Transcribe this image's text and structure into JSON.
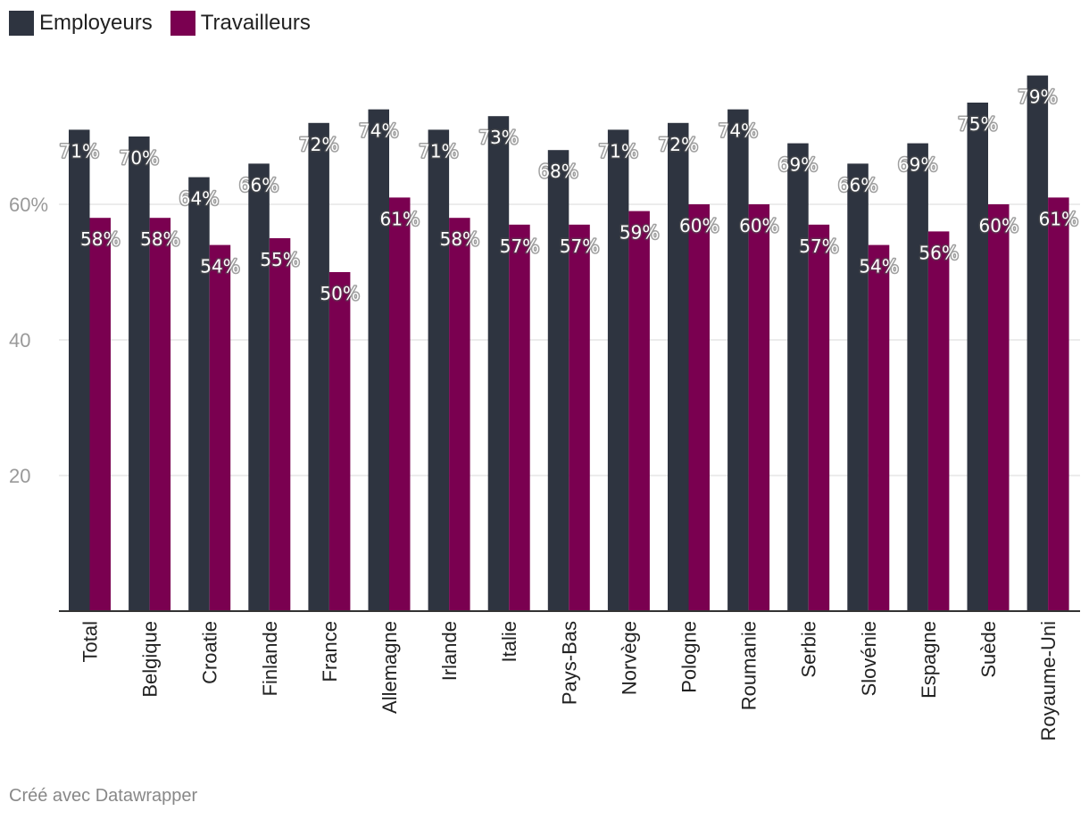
{
  "chart_data": {
    "type": "bar",
    "title": "",
    "xlabel": "",
    "ylabel": "",
    "ylim": [
      0,
      80
    ],
    "yticks": [
      {
        "value": 20,
        "label": "20"
      },
      {
        "value": 40,
        "label": "40"
      },
      {
        "value": 60,
        "label": "60%"
      }
    ],
    "grid": true,
    "legend_position": "top-left",
    "categories": [
      "Total",
      "Belgique",
      "Croatie",
      "Finlande",
      "France",
      "Allemagne",
      "Irlande",
      "Italie",
      "Pays-Bas",
      "Norvège",
      "Pologne",
      "Roumanie",
      "Serbie",
      "Slovénie",
      "Espagne",
      "Suède",
      "Royaume-Uni"
    ],
    "series": [
      {
        "name": "Employeurs",
        "color": "#2e3440",
        "values": [
          71,
          70,
          64,
          66,
          72,
          74,
          71,
          73,
          68,
          71,
          72,
          74,
          69,
          66,
          69,
          75,
          79
        ],
        "labels": [
          "71%",
          "70%",
          "64%",
          "66%",
          "72%",
          "74%",
          "71%",
          "73%",
          "68%",
          "71%",
          "72%",
          "74%",
          "69%",
          "66%",
          "69%",
          "75%",
          "79%"
        ]
      },
      {
        "name": "Travailleurs",
        "color": "#7a0050",
        "values": [
          58,
          58,
          54,
          55,
          50,
          61,
          58,
          57,
          57,
          59,
          60,
          60,
          57,
          54,
          56,
          60,
          61
        ],
        "labels": [
          "58%",
          "58%",
          "54%",
          "55%",
          "50%",
          "61%",
          "58%",
          "57%",
          "57%",
          "59%",
          "60%",
          "60%",
          "57%",
          "54%",
          "56%",
          "60%",
          "61%"
        ]
      }
    ]
  },
  "footer": {
    "credit": "Créé avec Datawrapper"
  }
}
